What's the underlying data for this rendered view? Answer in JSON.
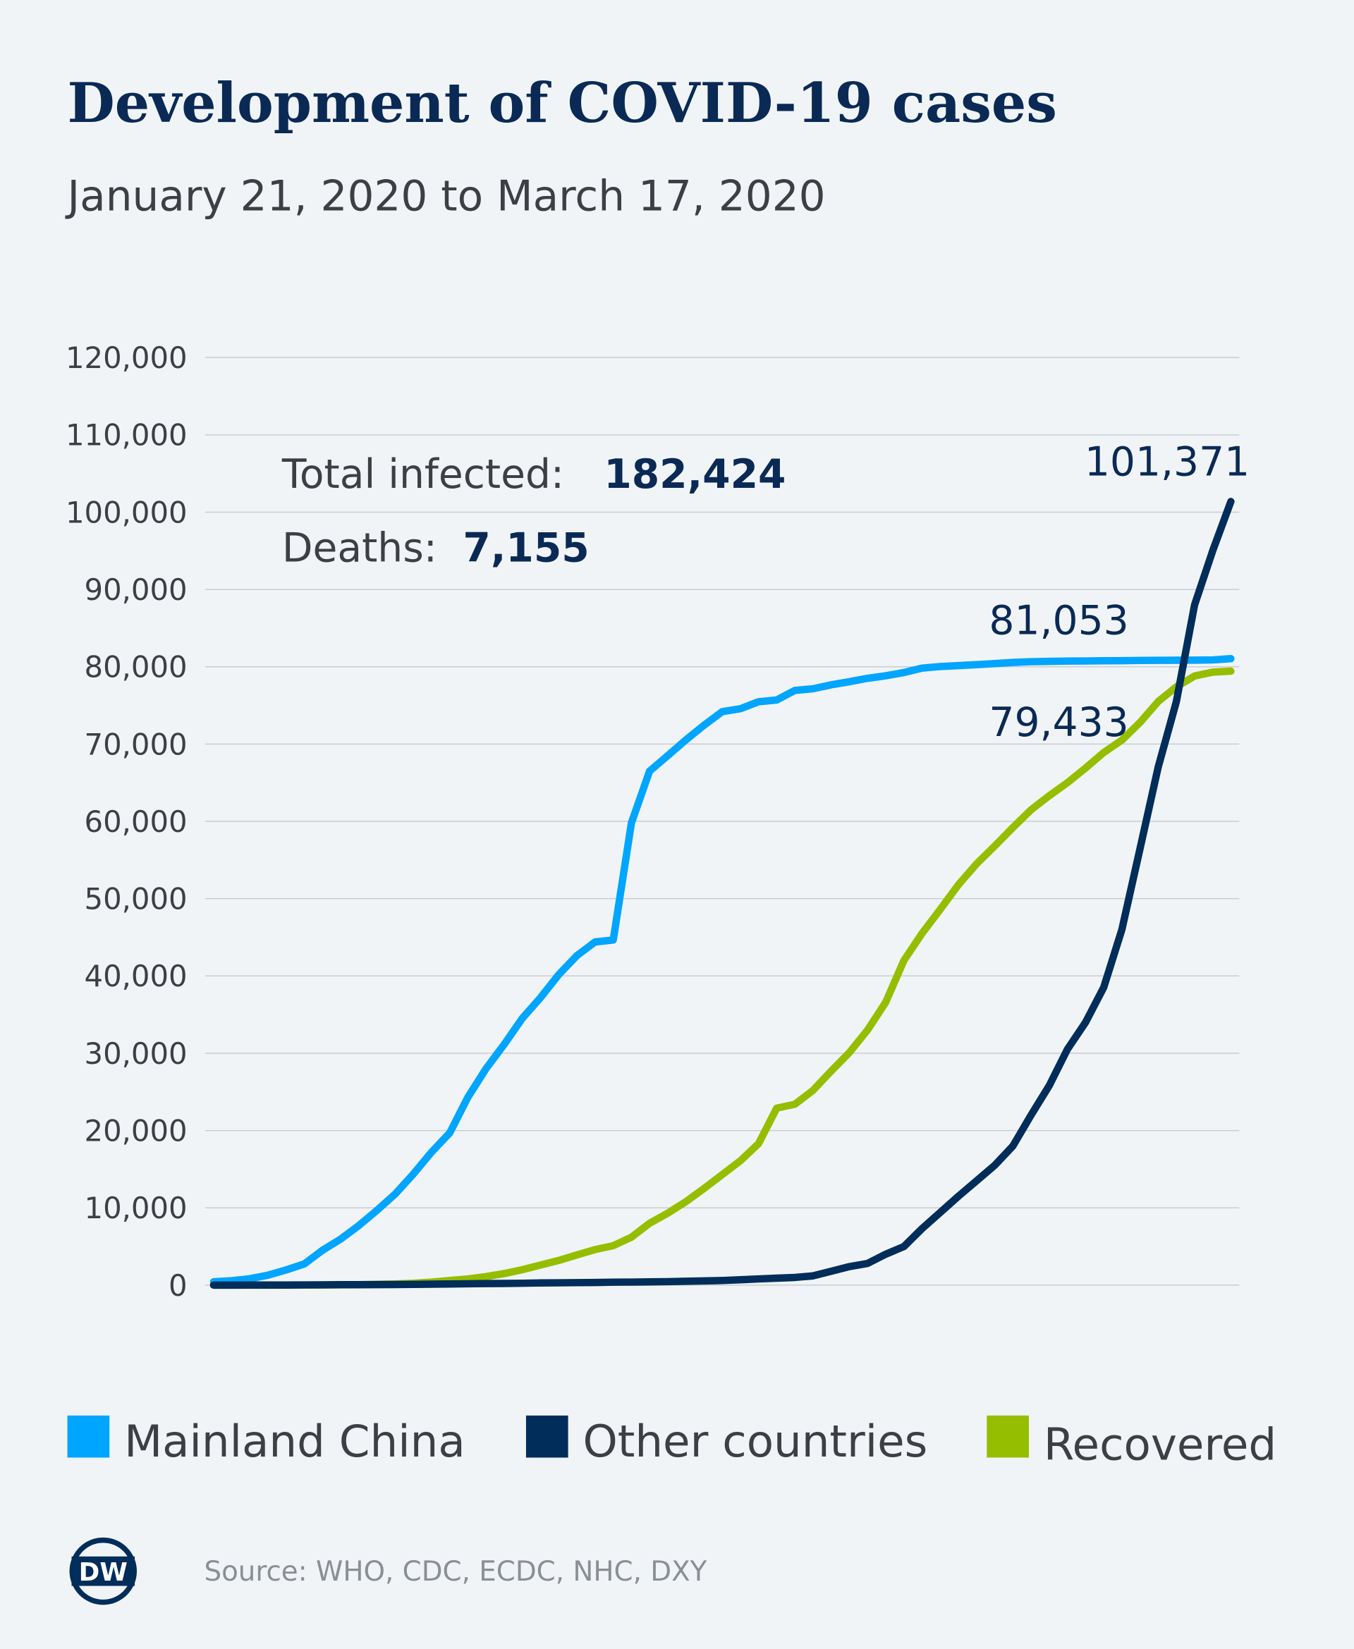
{
  "chart_data": {
    "type": "line",
    "title": "Development of COVID-19 cases",
    "subtitle": "January 21, 2020 to March 17, 2020",
    "x_start": "January 21, 2020",
    "x_end": "March 17, 2020",
    "ylim": [
      0,
      120000
    ],
    "yticks": [
      0,
      10000,
      20000,
      30000,
      40000,
      50000,
      60000,
      70000,
      80000,
      90000,
      100000,
      110000,
      120000
    ],
    "ytick_labels": [
      "0",
      "10,000",
      "20,000",
      "30,000",
      "40,000",
      "50,000",
      "60,000",
      "70,000",
      "80,000",
      "90,000",
      "100,000",
      "110,000",
      "120,000"
    ],
    "grid": true,
    "legend_position": "bottom",
    "series": [
      {
        "name": "Mainland China",
        "color": "#00a5ff",
        "end_label": "81,053",
        "values": [
          440,
          571,
          830,
          1287,
          1975,
          2744,
          4515,
          5974,
          7711,
          9692,
          11791,
          14380,
          17205,
          19700,
          24324,
          28018,
          31161,
          34546,
          37198,
          40171,
          42638,
          44400,
          44653,
          59804,
          66492,
          68500,
          70548,
          72436,
          74185,
          74576,
          75465,
          75700,
          76936,
          77150,
          77658,
          78064,
          78497,
          78824,
          79251,
          79824,
          80026,
          80151,
          80270,
          80409,
          80552,
          80651,
          80695,
          80735,
          80754,
          80778,
          80793,
          80813,
          80824,
          80844,
          80860,
          80881,
          81053
        ]
      },
      {
        "name": "Other countries",
        "color": "#002d5a",
        "end_label": "101,371",
        "values": [
          0,
          5,
          10,
          15,
          20,
          30,
          40,
          50,
          60,
          70,
          80,
          100,
          120,
          150,
          180,
          200,
          220,
          250,
          280,
          300,
          320,
          340,
          380,
          400,
          420,
          450,
          500,
          550,
          600,
          700,
          800,
          900,
          1000,
          1200,
          1800,
          2400,
          2800,
          4000,
          5000,
          7300,
          9400,
          11500,
          13500,
          15500,
          18000,
          22000,
          25800,
          30500,
          34000,
          38500,
          46000,
          56500,
          67000,
          75500,
          88000,
          95000,
          101371
        ]
      },
      {
        "name": "Recovered",
        "color": "#96be00",
        "end_label": "79,433",
        "values": [
          0,
          0,
          0,
          0,
          0,
          10,
          20,
          40,
          60,
          110,
          150,
          250,
          400,
          600,
          800,
          1100,
          1500,
          2000,
          2600,
          3200,
          3900,
          4600,
          5100,
          6200,
          8000,
          9300,
          10800,
          12500,
          14300,
          16100,
          18300,
          22900,
          23400,
          25200,
          27700,
          30100,
          33000,
          36600,
          42000,
          45500,
          48600,
          51800,
          54500,
          56800,
          59200,
          61500,
          63300,
          65000,
          66900,
          68900,
          70500,
          72800,
          75500,
          77400,
          78800,
          79300,
          79433
        ]
      }
    ]
  },
  "annotations": {
    "total_label": "Total infected:",
    "total_value": "182,424",
    "deaths_label": "Deaths:",
    "deaths_value": "7,155"
  },
  "source": "Source: WHO, CDC, ECDC, NHC, DXY",
  "logo_text": "DW"
}
